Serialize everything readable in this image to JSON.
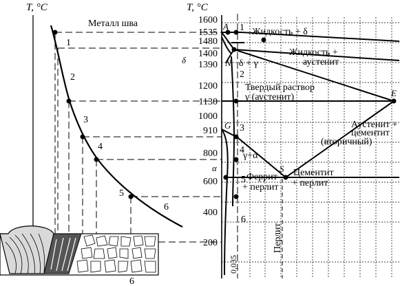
{
  "left_panel": {
    "axis_label": "T, °C",
    "title": "Металл шва",
    "curve_points": [
      "1",
      "2",
      "3",
      "4",
      "5",
      "6"
    ],
    "bottom_label": "6"
  },
  "right_panel": {
    "axis_label": "T, °C",
    "ticks": [
      "1600",
      "1535",
      "1480",
      "1400",
      "1390",
      "1200",
      "1130",
      "1000",
      "910",
      "800",
      "600",
      "400",
      "200"
    ],
    "delta_symbol": "δ",
    "alpha_symbol": "α",
    "point_letters": {
      "A": "A",
      "N": "N",
      "G": "G",
      "S": "S",
      "E": "E"
    },
    "zone_numbers": [
      "1",
      "2",
      "3",
      "4",
      "5",
      "6"
    ],
    "region_labels": {
      "liquid_delta": "Жидкость + δ",
      "liquid_austenite_1": "Жидкость +",
      "liquid_austenite_2": "аустенит",
      "delta_gamma": "δ + γ",
      "solid_solution_1": "Твердый раствор",
      "solid_solution_2": "γ (аустенит)",
      "austenite_cementite_1": "Аустенит +",
      "austenite_cementite_2": "цементит",
      "austenite_cementite_3": "(вторичный)",
      "gamma_alpha": "γ+α",
      "ferrite_pearlite_1": "Феррит",
      "ferrite_pearlite_2": "+ перлит",
      "cementite_pearlite_1": "Цементит",
      "cementite_pearlite_2": "+ перлит",
      "pearlite": "Перлит",
      "carbon_mark": "0,035"
    }
  },
  "colors": {
    "ink": "#000000",
    "background": "#ffffff",
    "weld_fill": "#d9d9d9"
  }
}
